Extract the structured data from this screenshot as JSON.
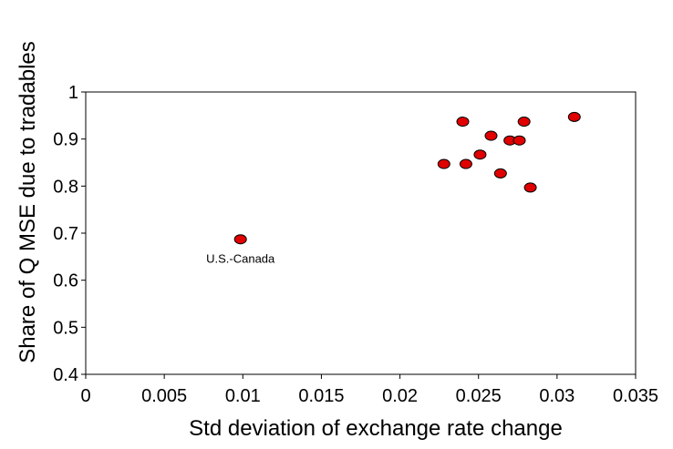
{
  "chart_data": {
    "type": "scatter",
    "title": "",
    "xlabel": "Std deviation of exchange rate change",
    "ylabel": "Share of Q MSE due to tradables",
    "xlim": [
      0,
      0.035
    ],
    "ylim": [
      0.4,
      1
    ],
    "x_ticks": [
      "0",
      "0.005",
      "0.01",
      "0.015",
      "0.02",
      "0.025",
      "0.03",
      "0.035"
    ],
    "y_ticks": [
      "0.4",
      "0.5",
      "0.6",
      "0.7",
      "0.8",
      "0.9",
      "1"
    ],
    "grid": false,
    "legend": "none",
    "marker_color": "#e00000",
    "points": [
      {
        "x": 0.00985,
        "y": 0.687,
        "label": "U.S.-Canada"
      },
      {
        "x": 0.0228,
        "y": 0.847
      },
      {
        "x": 0.024,
        "y": 0.937
      },
      {
        "x": 0.0242,
        "y": 0.847
      },
      {
        "x": 0.0251,
        "y": 0.867
      },
      {
        "x": 0.0258,
        "y": 0.907
      },
      {
        "x": 0.0264,
        "y": 0.827
      },
      {
        "x": 0.027,
        "y": 0.897
      },
      {
        "x": 0.0276,
        "y": 0.897
      },
      {
        "x": 0.0279,
        "y": 0.937
      },
      {
        "x": 0.0283,
        "y": 0.797
      },
      {
        "x": 0.0311,
        "y": 0.947
      }
    ]
  }
}
